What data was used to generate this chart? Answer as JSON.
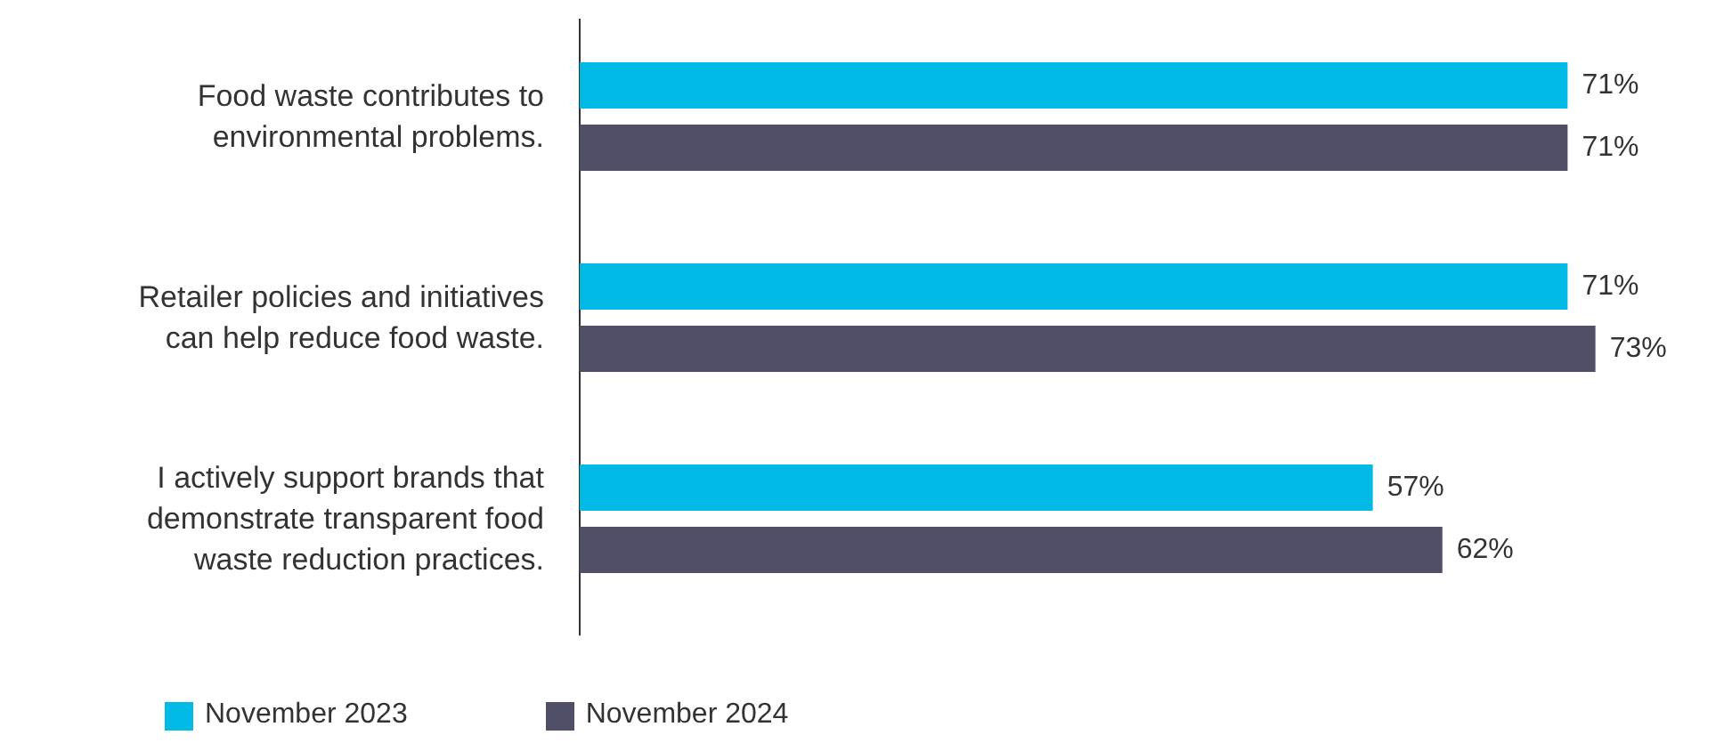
{
  "chart_data": {
    "type": "bar",
    "orientation": "horizontal",
    "categories": [
      "Food waste contributes to environmental problems.",
      "Retailer policies and initiatives can help reduce food waste.",
      "I actively support brands that demonstrate transparent food waste reduction practices."
    ],
    "series": [
      {
        "name": "November 2023",
        "color": "#00b9e4",
        "values": [
          71,
          71,
          57
        ],
        "value_labels": [
          "71%",
          "71%",
          "57%"
        ]
      },
      {
        "name": "November 2024",
        "color": "#4f5068",
        "values": [
          71,
          73,
          62
        ],
        "value_labels": [
          "71%",
          "73%",
          "62%"
        ]
      }
    ],
    "legend": "bottom left",
    "grid": false
  }
}
